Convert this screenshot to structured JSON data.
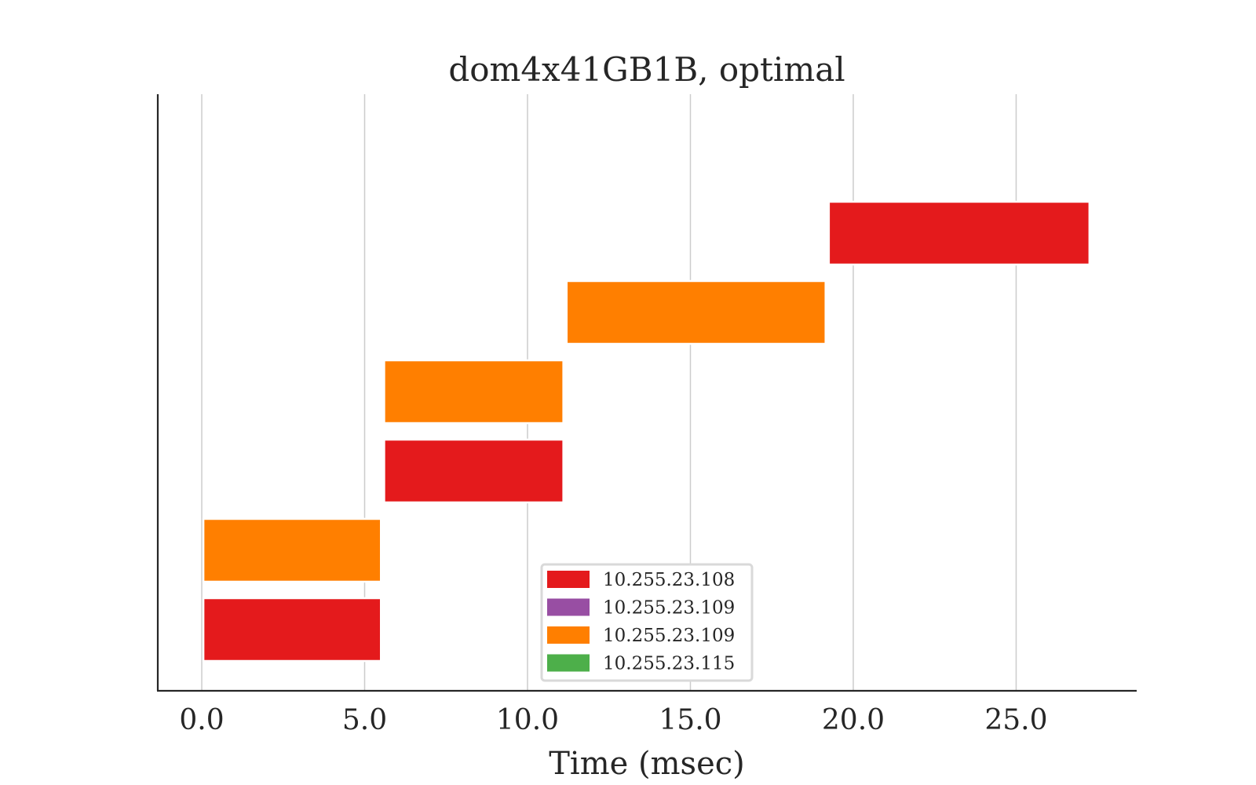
{
  "chart_data": {
    "type": "gantt",
    "title": "dom4x41GB1B, optimal",
    "xlabel": "Time (msec)",
    "ylabel": "",
    "xlim": [
      -1.35,
      28.7
    ],
    "x_ticks": [
      "0.0",
      "5.0",
      "10.0",
      "15.0",
      "20.0",
      "25.0"
    ],
    "x_tick_values": [
      0,
      5,
      10,
      15,
      20,
      25
    ],
    "grid": "vertical",
    "legend_position": "lower-center",
    "series": [
      {
        "name": "10.255.23.108",
        "color": "#e41a1c"
      },
      {
        "name": "10.255.23.109",
        "color": "#984ea3"
      },
      {
        "name": "10.255.23.109",
        "color": "#ff7f00"
      },
      {
        "name": "10.255.23.115",
        "color": "#4daf4a"
      }
    ],
    "bars": [
      {
        "row": 0,
        "start": 0.05,
        "end": 5.5,
        "series": 0
      },
      {
        "row": 1,
        "start": 0.05,
        "end": 5.5,
        "series": 2
      },
      {
        "row": 2,
        "start": 5.6,
        "end": 11.1,
        "series": 0
      },
      {
        "row": 3,
        "start": 5.6,
        "end": 11.1,
        "series": 2
      },
      {
        "row": 4,
        "start": 11.2,
        "end": 19.15,
        "series": 2
      },
      {
        "row": 5,
        "start": 19.25,
        "end": 27.25,
        "series": 0
      }
    ],
    "row_count": 7
  }
}
